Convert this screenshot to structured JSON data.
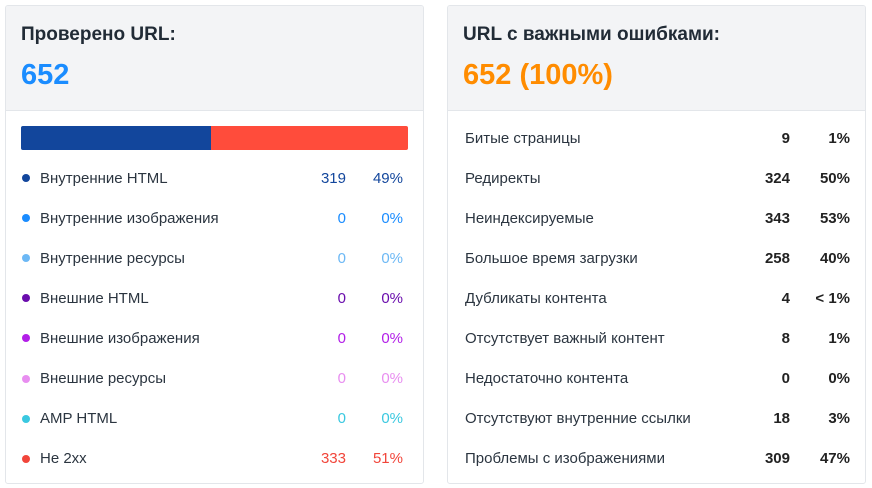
{
  "left_card": {
    "title": "Проверено URL:",
    "value": "652",
    "value_color": "#1a8cff",
    "bar": [
      {
        "name": "internal-html",
        "fraction": 0.49,
        "color": "#12469c"
      },
      {
        "name": "non-2xx",
        "fraction": 0.51,
        "color": "#ff4c3b"
      }
    ],
    "rows": [
      {
        "label": "Внутренние HTML",
        "count": "319",
        "percent": "49%",
        "color": "#12469c"
      },
      {
        "label": "Внутренние изображения",
        "count": "0",
        "percent": "0%",
        "color": "#1a8cff"
      },
      {
        "label": "Внутренние ресурсы",
        "count": "0",
        "percent": "0%",
        "color": "#6cb8f5"
      },
      {
        "label": "Внешние HTML",
        "count": "0",
        "percent": "0%",
        "color": "#6a0dad"
      },
      {
        "label": "Внешние изображения",
        "count": "0",
        "percent": "0%",
        "color": "#b21ee8"
      },
      {
        "label": "Внешние ресурсы",
        "count": "0",
        "percent": "0%",
        "color": "#e88ef0"
      },
      {
        "label": "AMP HTML",
        "count": "0",
        "percent": "0%",
        "color": "#3ac8e0"
      },
      {
        "label": "Не 2xx",
        "count": "333",
        "percent": "51%",
        "color": "#f1453a"
      }
    ]
  },
  "right_card": {
    "title": "URL с важными ошибками:",
    "value": "652 (100%)",
    "value_color": "#ff8c00",
    "rows": [
      {
        "label": "Битые страницы",
        "count": "9",
        "percent": "1%"
      },
      {
        "label": "Редиректы",
        "count": "324",
        "percent": "50%"
      },
      {
        "label": "Неиндексируемые",
        "count": "343",
        "percent": "53%"
      },
      {
        "label": "Большое время загрузки",
        "count": "258",
        "percent": "40%"
      },
      {
        "label": "Дубликаты контента",
        "count": "4",
        "percent": "< 1%"
      },
      {
        "label": "Отсутствует важный контент",
        "count": "8",
        "percent": "1%"
      },
      {
        "label": "Недостаточно контента",
        "count": "0",
        "percent": "0%"
      },
      {
        "label": "Отсутствуют внутренние ссылки",
        "count": "18",
        "percent": "3%"
      },
      {
        "label": "Проблемы с изображениями",
        "count": "309",
        "percent": "47%"
      }
    ]
  }
}
